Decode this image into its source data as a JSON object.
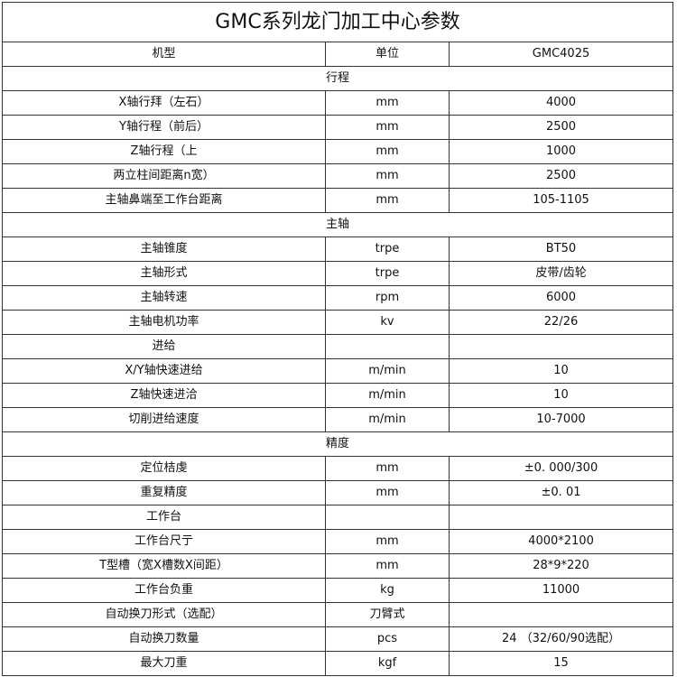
{
  "title": "GMC系列龙门加工中心参数",
  "header": [
    "机型",
    "单位",
    "GMC4025"
  ],
  "rows": [
    {
      "section": "行程"
    },
    {
      "cells": [
        "X轴行拜（左石）",
        "mm",
        "4000"
      ]
    },
    {
      "cells": [
        "Y轴行程（前后）",
        "mm",
        "2500"
      ]
    },
    {
      "cells": [
        "Z轴行程（上",
        "mm",
        "1000"
      ]
    },
    {
      "cells": [
        "两立柱间距离n宽）",
        "mm",
        "2500"
      ]
    },
    {
      "cells": [
        "主轴鼻端至工作台距离",
        "mm",
        "105-1105"
      ]
    },
    {
      "section": "主轴"
    },
    {
      "cells": [
        "主轴锥度",
        "trpe",
        "BT50"
      ]
    },
    {
      "cells": [
        "主轴形式",
        "trpe",
        "皮带/齿轮"
      ]
    },
    {
      "cells": [
        "主轴转速",
        "rpm",
        "6000"
      ]
    },
    {
      "cells": [
        "主轴电机功率",
        "kv",
        "22/26"
      ]
    },
    {
      "cells": [
        "进给",
        "",
        ""
      ]
    },
    {
      "cells": [
        "X/Y轴快速进给",
        "m/min",
        "10"
      ]
    },
    {
      "cells": [
        "Z轴快速进洽",
        "m/min",
        "10"
      ]
    },
    {
      "cells": [
        "切削进给速度",
        "m/min",
        "10-7000"
      ]
    },
    {
      "section": "精度"
    },
    {
      "cells": [
        "定位桔虔",
        "mm",
        "±0. 000/300"
      ]
    },
    {
      "cells": [
        "重复精度",
        "mm",
        "±0. 01"
      ]
    },
    {
      "cells": [
        "工作台",
        "",
        ""
      ]
    },
    {
      "cells": [
        "工作台尺亍",
        "mm",
        "4000*2100"
      ]
    },
    {
      "cells": [
        "T型槽（宽X槽数X间距）",
        "mm",
        "28*9*220"
      ]
    },
    {
      "cells": [
        "工作台负重",
        "kg",
        "11000"
      ]
    },
    {
      "cells": [
        "自动换刀形式（选配）",
        "刀臂式",
        ""
      ]
    },
    {
      "cells": [
        "自动换刀数量",
        "pcs",
        "24 （32/60/90选配）"
      ]
    },
    {
      "cells": [
        "最大刀重",
        "kgf",
        "15"
      ]
    }
  ]
}
